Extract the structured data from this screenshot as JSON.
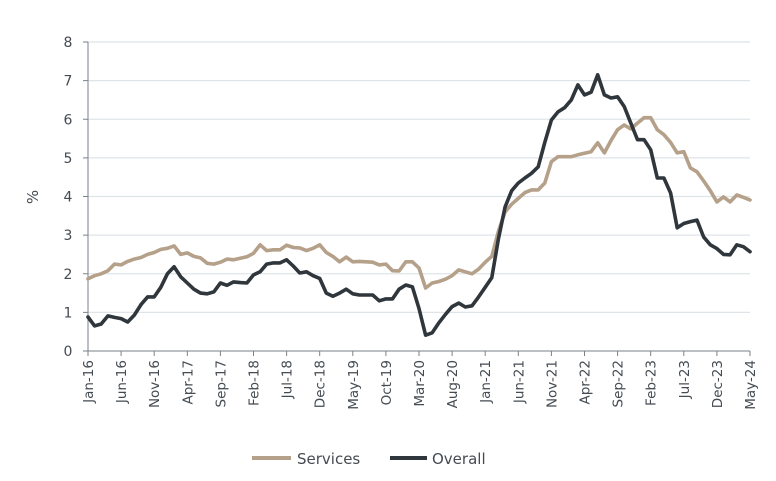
{
  "chart_data": {
    "type": "line",
    "title": "",
    "xlabel": "",
    "ylabel": "%",
    "ylim": [
      0,
      8
    ],
    "yticks": [
      "0",
      "1",
      "2",
      "3",
      "4",
      "5",
      "6",
      "7",
      "8"
    ],
    "grid": true,
    "legend_position": "bottom",
    "x": [
      "Jan-16",
      "Feb-16",
      "Mar-16",
      "Apr-16",
      "May-16",
      "Jun-16",
      "Jul-16",
      "Aug-16",
      "Sep-16",
      "Oct-16",
      "Nov-16",
      "Dec-16",
      "Jan-17",
      "Feb-17",
      "Mar-17",
      "Apr-17",
      "May-17",
      "Jun-17",
      "Jul-17",
      "Aug-17",
      "Sep-17",
      "Oct-17",
      "Nov-17",
      "Dec-17",
      "Jan-18",
      "Feb-18",
      "Mar-18",
      "Apr-18",
      "May-18",
      "Jun-18",
      "Jul-18",
      "Aug-18",
      "Sep-18",
      "Oct-18",
      "Nov-18",
      "Dec-18",
      "Jan-19",
      "Feb-19",
      "Mar-19",
      "Apr-19",
      "May-19",
      "Jun-19",
      "Jul-19",
      "Aug-19",
      "Sep-19",
      "Oct-19",
      "Nov-19",
      "Dec-19",
      "Jan-20",
      "Feb-20",
      "Mar-20",
      "Apr-20",
      "May-20",
      "Jun-20",
      "Jul-20",
      "Aug-20",
      "Sep-20",
      "Oct-20",
      "Nov-20",
      "Dec-20",
      "Jan-21",
      "Feb-21",
      "Mar-21",
      "Apr-21",
      "May-21",
      "Jun-21",
      "Jul-21",
      "Aug-21",
      "Sep-21",
      "Oct-21",
      "Nov-21",
      "Dec-21",
      "Jan-22",
      "Feb-22",
      "Mar-22",
      "Apr-22",
      "May-22",
      "Jun-22",
      "Jul-22",
      "Aug-22",
      "Sep-22",
      "Oct-22",
      "Nov-22",
      "Dec-22",
      "Jan-23",
      "Feb-23",
      "Mar-23",
      "Apr-23",
      "May-23",
      "Jun-23",
      "Jul-23",
      "Aug-23",
      "Sep-23",
      "Oct-23",
      "Nov-23",
      "Dec-23",
      "Jan-24",
      "Feb-24",
      "Mar-24",
      "Apr-24",
      "May-24"
    ],
    "xtick_labels": [
      "Jan-16",
      "Jun-16",
      "Nov-16",
      "Apr-17",
      "Sep-17",
      "Feb-18",
      "Jul-18",
      "Dec-18",
      "May-19",
      "Oct-19",
      "Mar-20",
      "Aug-20",
      "Jan-21",
      "Jun-21",
      "Nov-21",
      "Apr-22",
      "Sep-22",
      "Feb-23",
      "Jul-23",
      "Dec-23",
      "May-24"
    ],
    "series": [
      {
        "name": "Services",
        "color": "#b5a08a",
        "values": [
          1.87,
          1.95,
          2.0,
          2.08,
          2.25,
          2.23,
          2.32,
          2.38,
          2.42,
          2.5,
          2.55,
          2.63,
          2.66,
          2.72,
          2.5,
          2.54,
          2.45,
          2.41,
          2.27,
          2.25,
          2.3,
          2.38,
          2.36,
          2.4,
          2.44,
          2.53,
          2.75,
          2.6,
          2.62,
          2.62,
          2.74,
          2.68,
          2.67,
          2.6,
          2.66,
          2.75,
          2.55,
          2.45,
          2.31,
          2.43,
          2.31,
          2.32,
          2.31,
          2.3,
          2.23,
          2.25,
          2.08,
          2.07,
          2.31,
          2.31,
          2.15,
          1.63,
          1.76,
          1.8,
          1.86,
          1.95,
          2.1,
          2.05,
          2.0,
          2.12,
          2.3,
          2.45,
          3.1,
          3.6,
          3.8,
          3.95,
          4.1,
          4.17,
          4.17,
          4.35,
          4.9,
          5.03,
          5.03,
          5.03,
          5.08,
          5.12,
          5.16,
          5.39,
          5.13,
          5.45,
          5.73,
          5.85,
          5.75,
          5.9,
          6.04,
          6.04,
          5.73,
          5.6,
          5.4,
          5.13,
          5.16,
          4.74,
          4.64,
          4.4,
          4.15,
          3.86,
          3.99,
          3.86,
          4.04,
          3.98,
          3.91
        ]
      },
      {
        "name": "Overall",
        "color": "#2f363c",
        "values": [
          0.88,
          0.65,
          0.7,
          0.91,
          0.87,
          0.84,
          0.75,
          0.93,
          1.2,
          1.4,
          1.4,
          1.65,
          2.0,
          2.18,
          1.92,
          1.76,
          1.6,
          1.5,
          1.48,
          1.53,
          1.76,
          1.7,
          1.79,
          1.77,
          1.76,
          1.97,
          2.05,
          2.25,
          2.28,
          2.28,
          2.36,
          2.2,
          2.02,
          2.05,
          1.95,
          1.88,
          1.5,
          1.42,
          1.5,
          1.6,
          1.48,
          1.45,
          1.45,
          1.45,
          1.3,
          1.35,
          1.35,
          1.6,
          1.71,
          1.66,
          1.1,
          0.41,
          0.47,
          0.73,
          0.95,
          1.15,
          1.24,
          1.14,
          1.17,
          1.4,
          1.65,
          1.9,
          2.9,
          3.73,
          4.15,
          4.35,
          4.48,
          4.6,
          4.77,
          5.4,
          5.98,
          6.19,
          6.3,
          6.5,
          6.89,
          6.63,
          6.7,
          7.15,
          6.63,
          6.55,
          6.58,
          6.33,
          5.9,
          5.47,
          5.47,
          5.21,
          4.48,
          4.48,
          4.09,
          3.19,
          3.3,
          3.35,
          3.39,
          2.95,
          2.75,
          2.65,
          2.5,
          2.49,
          2.75,
          2.7,
          2.57
        ]
      }
    ]
  }
}
